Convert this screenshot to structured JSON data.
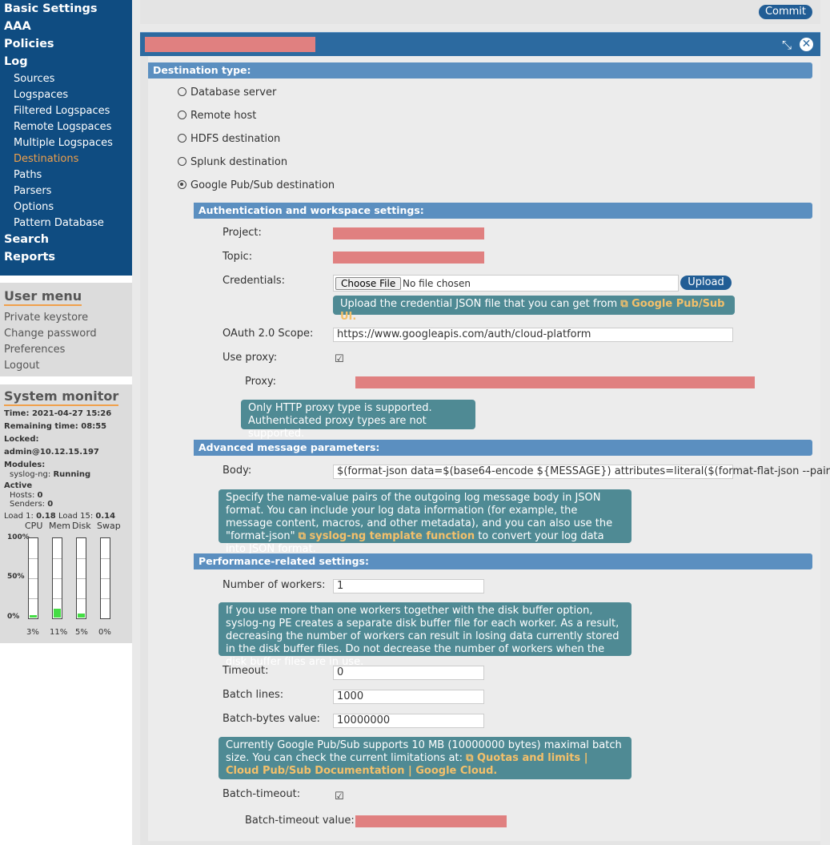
{
  "nav": {
    "top": [
      "Basic Settings",
      "AAA",
      "Policies",
      "Log"
    ],
    "log_sub": [
      "Sources",
      "Logspaces",
      "Filtered Logspaces",
      "Remote Logspaces",
      "Multiple Logspaces",
      "Destinations",
      "Paths",
      "Parsers",
      "Options",
      "Pattern Database"
    ],
    "bottom": [
      "Search",
      "Reports"
    ],
    "active": "Destinations"
  },
  "user_menu": {
    "title": "User menu",
    "items": [
      "Private keystore",
      "Change password",
      "Preferences",
      "Logout"
    ]
  },
  "system_monitor": {
    "title": "System monitor",
    "time_label": "Time:",
    "time": "2021-04-27 15:26",
    "remaining_label": "Remaining time:",
    "remaining": "08:55",
    "locked_label": "Locked:",
    "locked": "admin@10.12.15.197",
    "modules_label": "Modules:",
    "module_name": "syslog-ng:",
    "module_status": "Running",
    "active_label": "Active",
    "hosts_label": "Hosts:",
    "hosts": "0",
    "senders_label": "Senders:",
    "senders": "0",
    "load1_label": "Load 1:",
    "load1": "0.18",
    "load15_label": "Load 15:",
    "load15": "0.14",
    "y_labels": [
      "100%",
      "50%",
      "0%"
    ],
    "bars": [
      {
        "name": "CPU",
        "value": 3,
        "label": "3%"
      },
      {
        "name": "Mem",
        "value": 11,
        "label": "11%"
      },
      {
        "name": "Disk",
        "value": 5,
        "label": "5%"
      },
      {
        "name": "Swap",
        "value": 0,
        "label": "0%"
      }
    ]
  },
  "commit_label": "Commit",
  "dest_type": {
    "title": "Destination type:",
    "options": [
      "Database server",
      "Remote host",
      "HDFS destination",
      "Splunk destination",
      "Google Pub/Sub destination"
    ],
    "selected": "Google Pub/Sub destination"
  },
  "auth": {
    "title": "Authentication and workspace settings:",
    "project_label": "Project:",
    "topic_label": "Topic:",
    "credentials_label": "Credentials:",
    "choose_file": "Choose File",
    "no_file": "No file chosen",
    "upload": "Upload",
    "cred_info_text": "Upload the credential JSON file that you can get from ",
    "cred_info_link": "Google Pub/Sub UI.",
    "oauth_label": "OAuth 2.0 Scope:",
    "oauth_value": "https://www.googleapis.com/auth/cloud-platform",
    "use_proxy_label": "Use proxy:",
    "proxy_label": "Proxy:",
    "proxy_info_1": "Only HTTP proxy type is supported.",
    "proxy_info_2": "Authenticated proxy types are not supported."
  },
  "advanced": {
    "title": "Advanced message parameters:",
    "body_label": "Body:",
    "body_value": "$(format-json data=$(base64-encode ${MESSAGE}) attributes=literal($(format-flat-json --pair",
    "info_text": "Specify the name-value pairs of the outgoing log message body in JSON format. You can include your log data information (for example, the message content, macros, and other metadata), and you can also use the \"format-json\" ",
    "info_link": "syslog-ng template function",
    "info_tail": " to convert your log data into JSON format."
  },
  "performance": {
    "title": "Performance-related settings:",
    "workers_label": "Number of workers:",
    "workers_value": "1",
    "workers_info": "If you use more than one workers together with the disk buffer option, syslog-ng PE creates a separate disk buffer file for each worker. As a result, decreasing the number of workers can result in losing data currently stored in the disk buffer files. Do not decrease the number of workers when the disk buffer files are in use.",
    "timeout_label": "Timeout:",
    "timeout_value": "0",
    "batch_lines_label": "Batch lines:",
    "batch_lines_value": "1000",
    "batch_bytes_label": "Batch-bytes value:",
    "batch_bytes_value": "10000000",
    "batch_info_text": "Currently Google Pub/Sub supports 10 MB (10000000 bytes) maximal batch size. You can check the current limitations at: ",
    "batch_info_link": "Quotas and limits | Cloud Pub/Sub Documentation | Google Cloud.",
    "batch_timeout_label": "Batch-timeout:",
    "batch_timeout_value_label": "Batch-timeout value:"
  }
}
